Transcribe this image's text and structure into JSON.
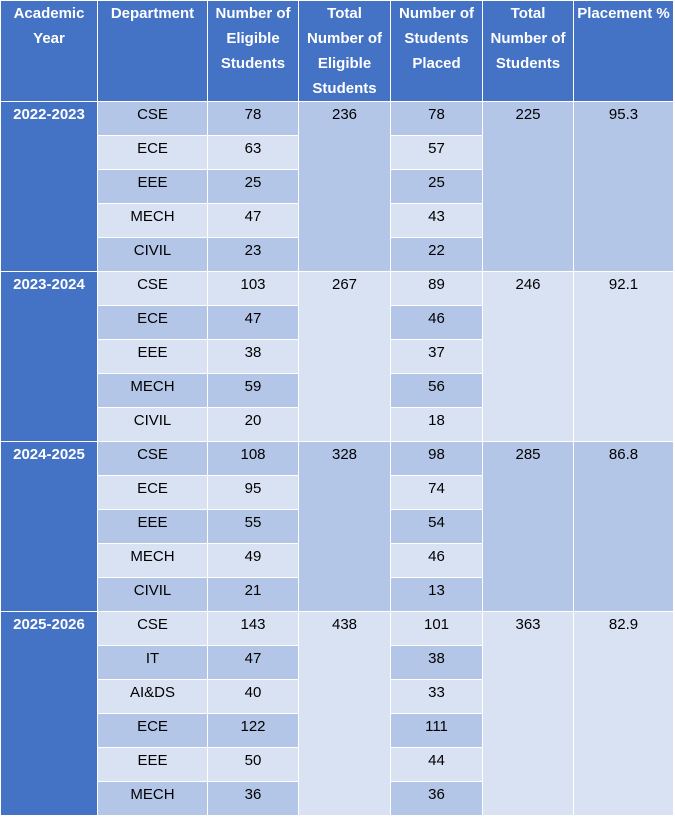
{
  "table": {
    "header": [
      "Academic Year",
      "Department",
      "Number of Eligible Students",
      "Total Number of Eligible Students",
      "Number of Students Placed",
      "Total Number of Students",
      "Placement %"
    ],
    "groups": [
      {
        "year": "2022-2023",
        "total_eligible": 236,
        "total_placed": 225,
        "placement": 95.3,
        "rows": [
          [
            "CSE",
            78,
            78
          ],
          [
            "ECE",
            63,
            57
          ],
          [
            "EEE",
            25,
            25
          ],
          [
            "MECH",
            47,
            43
          ],
          [
            "CIVIL",
            23,
            22
          ]
        ]
      },
      {
        "year": "2023-2024",
        "total_eligible": 267,
        "total_placed": 246,
        "placement": 92.1,
        "rows": [
          [
            "CSE",
            103,
            89
          ],
          [
            "ECE",
            47,
            46
          ],
          [
            "EEE",
            38,
            37
          ],
          [
            "MECH",
            59,
            56
          ],
          [
            "CIVIL",
            20,
            18
          ]
        ]
      },
      {
        "year": "2024-2025",
        "total_eligible": 328,
        "total_placed": 285,
        "placement": 86.8,
        "rows": [
          [
            "CSE",
            108,
            98
          ],
          [
            "ECE",
            95,
            74
          ],
          [
            "EEE",
            55,
            54
          ],
          [
            "MECH",
            49,
            46
          ],
          [
            "CIVIL",
            21,
            13
          ]
        ]
      },
      {
        "year": "2025-2026",
        "total_eligible": 438,
        "total_placed": 363,
        "placement": 82.9,
        "rows": [
          [
            "CSE",
            143,
            101
          ],
          [
            "IT",
            47,
            38
          ],
          [
            "AI&DS",
            40,
            33
          ],
          [
            "ECE",
            122,
            111
          ],
          [
            "EEE",
            50,
            44
          ],
          [
            "MECH",
            36,
            36
          ]
        ]
      }
    ]
  }
}
